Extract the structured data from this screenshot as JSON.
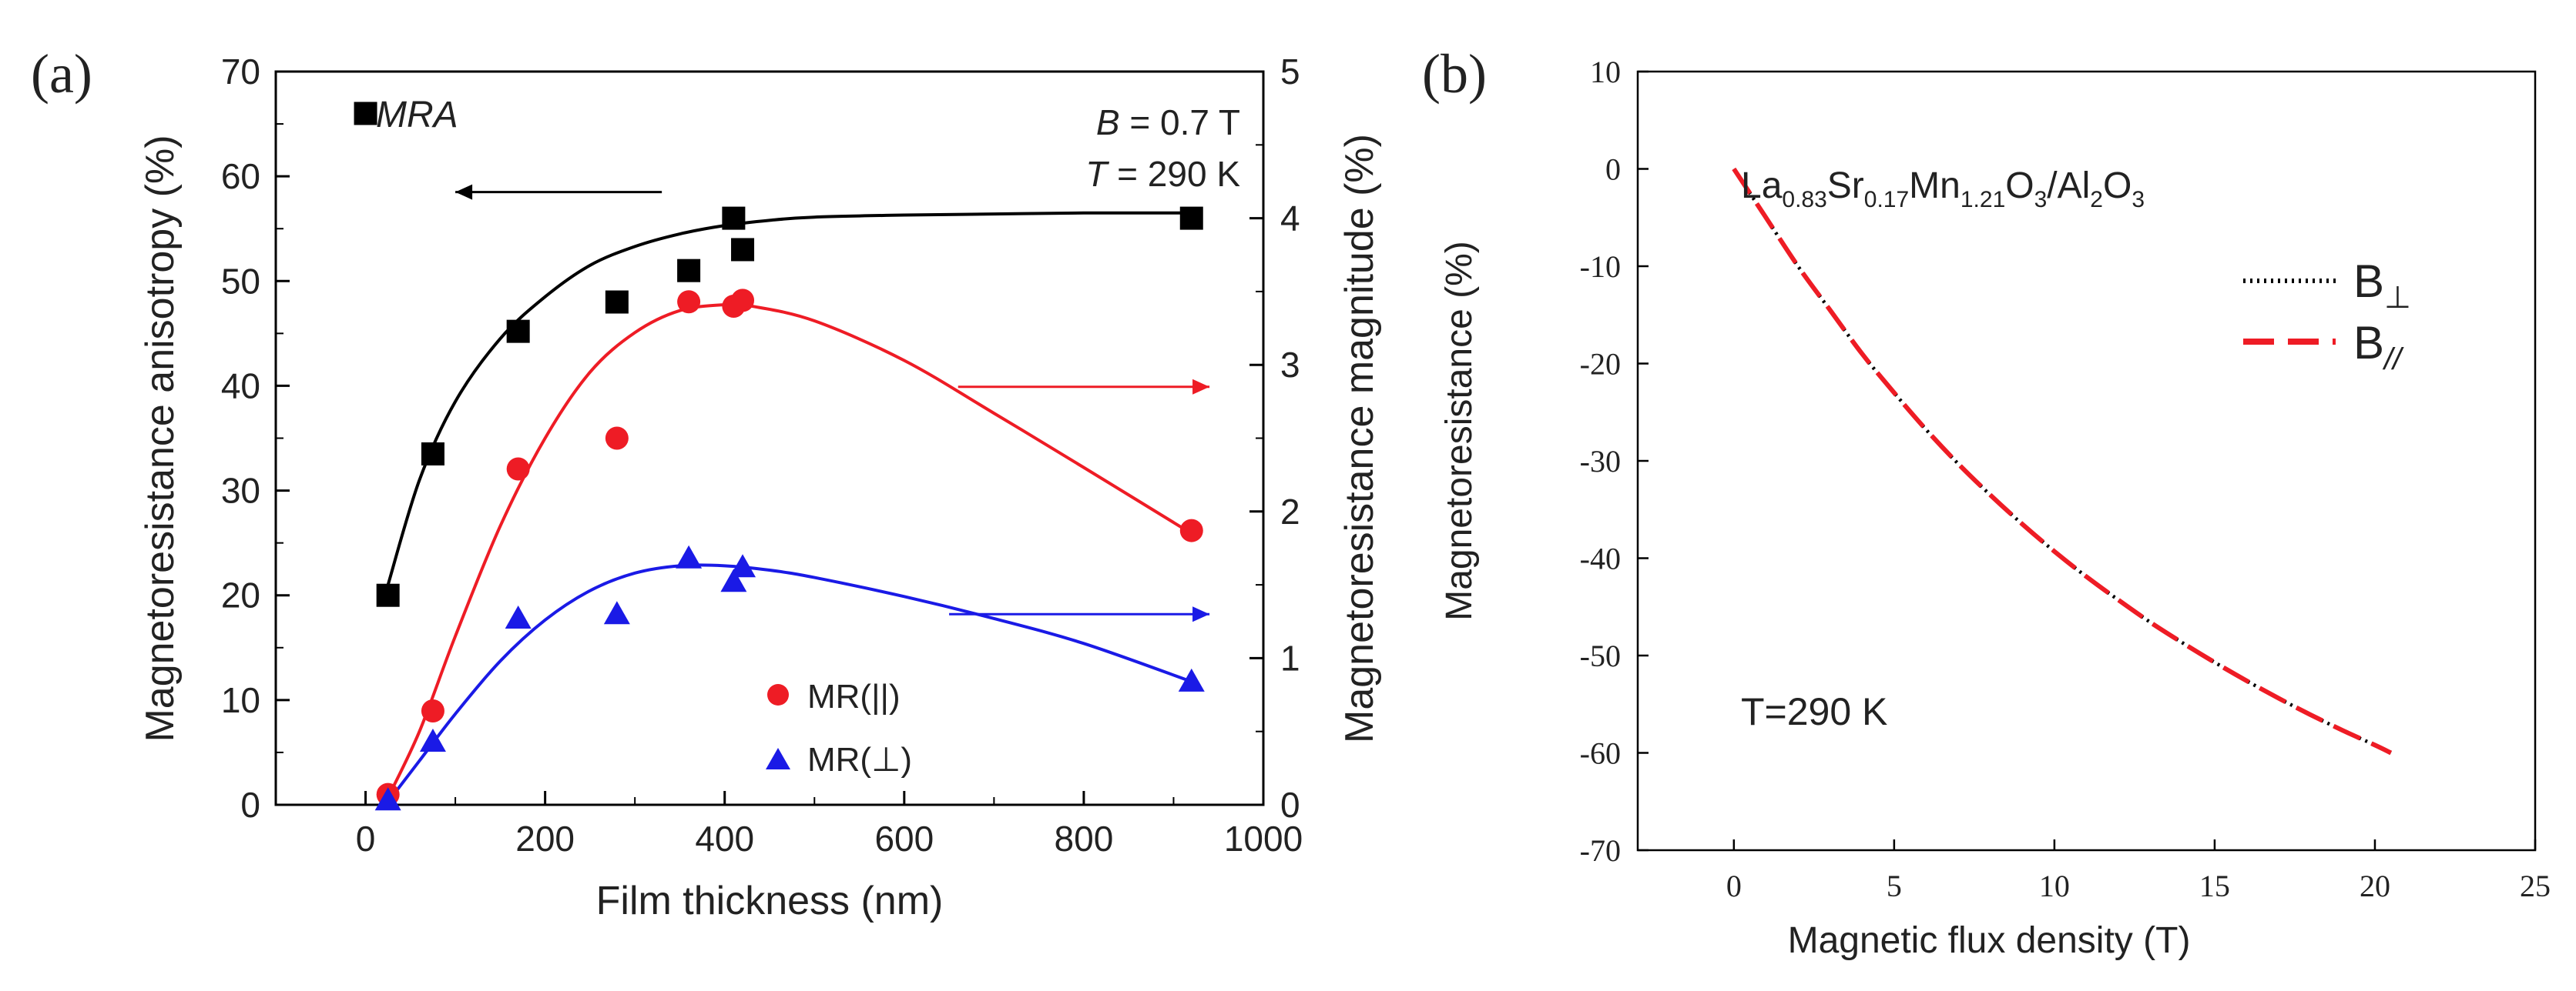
{
  "chart_data": [
    {
      "panel": "(a)",
      "type": "scatter",
      "xlabel": "Film thickness (nm)",
      "ylabel_left": "Magnetoresistance anisotropy (%)",
      "ylabel_right": "Magnetoresistance magnitude (%)",
      "xlim": [
        -100,
        1000
      ],
      "ylim_left": [
        0,
        70
      ],
      "ylim_right": [
        0,
        5
      ],
      "xticks": [
        "0",
        "200",
        "400",
        "600",
        "800",
        "1000"
      ],
      "yticks_left": [
        "0",
        "10",
        "20",
        "30",
        "40",
        "50",
        "60",
        "70"
      ],
      "yticks_right": [
        "0",
        "1",
        "2",
        "3",
        "4",
        "5"
      ],
      "annotations": {
        "mra": "MRA",
        "field_var": "B",
        "field_val": " = 0.7 T",
        "temp_var": "T",
        "temp_val": " = 290 K"
      },
      "series": [
        {
          "name": "MRA",
          "axis": "left",
          "marker": "square",
          "color": "#000000",
          "x": [
            0,
            25,
            75,
            170,
            280,
            360,
            410,
            420,
            920
          ],
          "y": [
            66,
            20,
            33.5,
            45.2,
            48,
            51,
            56,
            53,
            56
          ],
          "fit_x": [
            25,
            60,
            100,
            150,
            200,
            250,
            300,
            350,
            400,
            450,
            500,
            600,
            700,
            800,
            920
          ],
          "fit_y": [
            21,
            31,
            38.5,
            44.5,
            48.5,
            51.5,
            53.3,
            54.5,
            55.3,
            55.8,
            56.1,
            56.3,
            56.4,
            56.5,
            56.5
          ]
        },
        {
          "name": "MR(||)",
          "axis": "right",
          "marker": "circle",
          "color": "#ee1c25",
          "x": [
            25,
            75,
            170,
            280,
            360,
            410,
            420,
            920
          ],
          "y": [
            0.07,
            0.64,
            2.29,
            2.5,
            3.43,
            3.4,
            3.44,
            1.87
          ],
          "fit_x": [
            25,
            60,
            100,
            150,
            200,
            250,
            300,
            350,
            400,
            430,
            500,
            600,
            700,
            800,
            920
          ],
          "fit_y": [
            0.05,
            0.5,
            1.15,
            1.9,
            2.5,
            2.95,
            3.22,
            3.37,
            3.41,
            3.4,
            3.3,
            3.03,
            2.67,
            2.3,
            1.85
          ]
        },
        {
          "name": "MR(⊥)",
          "axis": "right",
          "marker": "triangle",
          "color": "#1a1ae6",
          "x": [
            25,
            75,
            170,
            280,
            360,
            410,
            420,
            920
          ],
          "y": [
            0.03,
            0.43,
            1.27,
            1.3,
            1.68,
            1.52,
            1.62,
            0.84
          ],
          "fit_x": [
            25,
            60,
            100,
            150,
            200,
            250,
            300,
            350,
            400,
            450,
            500,
            600,
            700,
            800,
            920
          ],
          "fit_y": [
            0.02,
            0.3,
            0.62,
            0.98,
            1.26,
            1.46,
            1.58,
            1.63,
            1.63,
            1.6,
            1.55,
            1.42,
            1.27,
            1.1,
            0.84
          ]
        }
      ],
      "arrows": [
        {
          "direction": "left",
          "axis": "left",
          "x_from": 330,
          "x_to": 100,
          "y": 58.5,
          "color": "#000000"
        },
        {
          "direction": "right",
          "axis": "right",
          "x_from": 660,
          "x_to": 940,
          "y": 2.85,
          "color": "#ee1c25"
        },
        {
          "direction": "right",
          "axis": "right",
          "x_from": 650,
          "x_to": 940,
          "y": 1.3,
          "color": "#1a1ae6"
        }
      ]
    },
    {
      "panel": "(b)",
      "type": "line",
      "xlabel": "Magnetic flux density (T)",
      "ylabel": "Magnetoresistance (%)",
      "xlim": [
        -3,
        25
      ],
      "ylim": [
        -70,
        10
      ],
      "xticks": [
        "0",
        "5",
        "10",
        "15",
        "20",
        "25"
      ],
      "yticks": [
        "10",
        "0",
        "-10",
        "-20",
        "-30",
        "-40",
        "-50",
        "-60",
        "-70"
      ],
      "annotations": {
        "formula": {
          "La": "La",
          "la_sub": "0.83",
          "Sr": "Sr",
          "sr_sub": "0.17",
          "Mn": "Mn",
          "mn_sub": "1.21",
          "O": "O",
          "o_sub": "3",
          "slash": "/Al",
          "al_sub": "2",
          "O2": "O",
          "o2_sub": "3"
        },
        "temperature": "T=290 K"
      },
      "legend": [
        {
          "label": "B",
          "sub": "⊥",
          "style": "dotted",
          "color": "#000000"
        },
        {
          "label": "B",
          "sub": "//",
          "style": "dashed",
          "color": "#ee1c25"
        }
      ],
      "series": [
        {
          "name": "B⊥",
          "style": "dotted",
          "color": "#000000",
          "x": [
            0,
            0.5,
            1,
            2,
            3,
            4,
            5,
            6,
            7,
            8,
            9,
            10,
            11,
            12,
            13,
            14,
            15,
            16,
            17,
            18,
            19,
            20,
            20.5
          ],
          "y": [
            0,
            -2.5,
            -5,
            -10,
            -14.5,
            -19,
            -23,
            -26.8,
            -30.3,
            -33.5,
            -36.5,
            -39.3,
            -41.9,
            -44.3,
            -46.6,
            -48.7,
            -50.7,
            -52.6,
            -54.4,
            -56.1,
            -57.7,
            -59.2,
            -60
          ]
        },
        {
          "name": "B//",
          "style": "dashed",
          "color": "#ee1c25",
          "x": [
            0,
            0.5,
            1,
            2,
            3,
            4,
            5,
            6,
            7,
            8,
            9,
            10,
            11,
            12,
            13,
            14,
            15,
            16,
            17,
            18,
            19,
            20,
            20.5
          ],
          "y": [
            0,
            -2.5,
            -5,
            -10,
            -14.5,
            -19,
            -23,
            -26.8,
            -30.3,
            -33.5,
            -36.5,
            -39.3,
            -41.9,
            -44.3,
            -46.6,
            -48.7,
            -50.7,
            -52.6,
            -54.4,
            -56.1,
            -57.7,
            -59.2,
            -60
          ]
        }
      ]
    }
  ]
}
